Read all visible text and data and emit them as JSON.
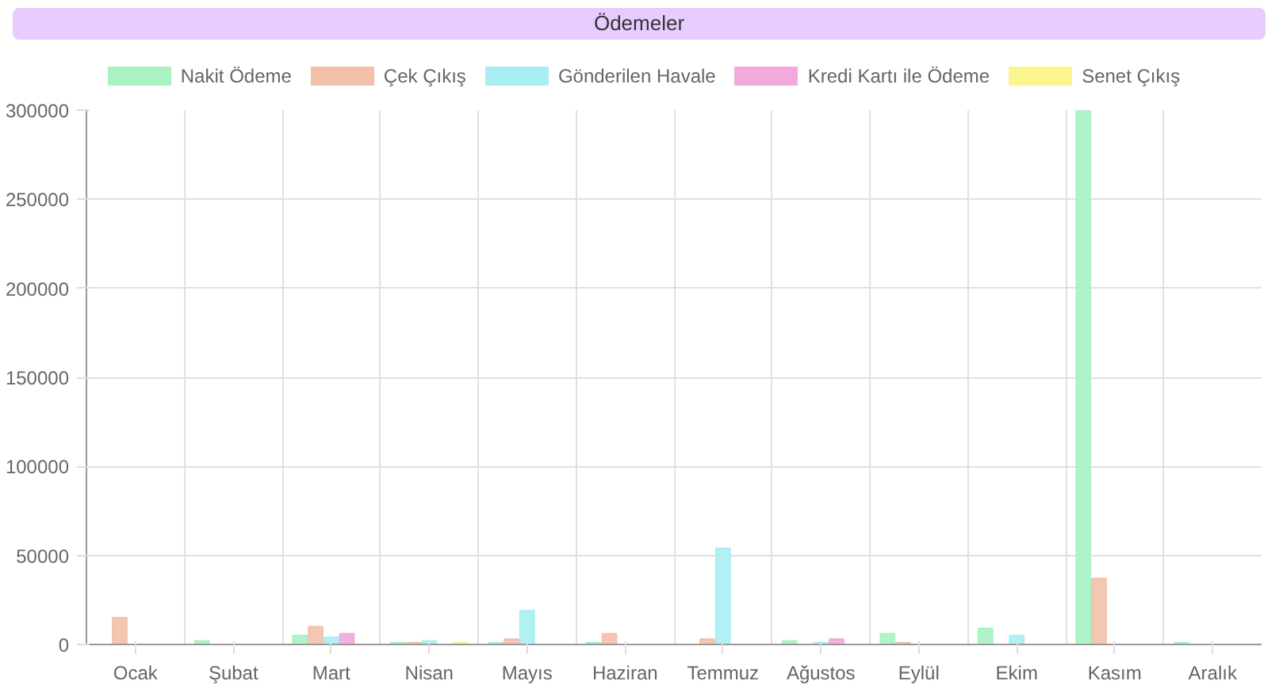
{
  "chart_data": {
    "type": "bar",
    "title": "Ödemeler",
    "categories": [
      "Ocak",
      "Şubat",
      "Mart",
      "Nisan",
      "Mayıs",
      "Haziran",
      "Temmuz",
      "Ağustos",
      "Eylül",
      "Ekim",
      "Kasım",
      "Aralık"
    ],
    "series": [
      {
        "name": "Nakit Ödeme",
        "color": "#a9f2c2",
        "values": [
          0,
          2000,
          5000,
          1000,
          1000,
          1000,
          0,
          2000,
          6000,
          9000,
          300000,
          1000
        ]
      },
      {
        "name": "Çek Çıkış",
        "color": "#f2c1a9",
        "values": [
          15000,
          0,
          10000,
          1000,
          3000,
          6000,
          3000,
          0,
          1000,
          0,
          37000,
          0
        ]
      },
      {
        "name": "Gönderilen Havale",
        "color": "#a9eef2",
        "values": [
          0,
          0,
          4000,
          2000,
          19000,
          0,
          54000,
          1000,
          0,
          5000,
          0,
          0
        ]
      },
      {
        "name": "Kredi Kartı ile Ödeme",
        "color": "#f2a9dc",
        "values": [
          0,
          0,
          6000,
          0,
          0,
          0,
          0,
          3000,
          0,
          0,
          0,
          0
        ]
      },
      {
        "name": "Senet Çıkış",
        "color": "#fbf58f",
        "values": [
          0,
          0,
          0,
          1000,
          0,
          0,
          0,
          0,
          0,
          0,
          0,
          0
        ]
      }
    ],
    "ylim": [
      0,
      300000
    ],
    "yticks": [
      0,
      50000,
      100000,
      150000,
      200000,
      250000,
      300000
    ],
    "grid": true,
    "legend": "top"
  }
}
